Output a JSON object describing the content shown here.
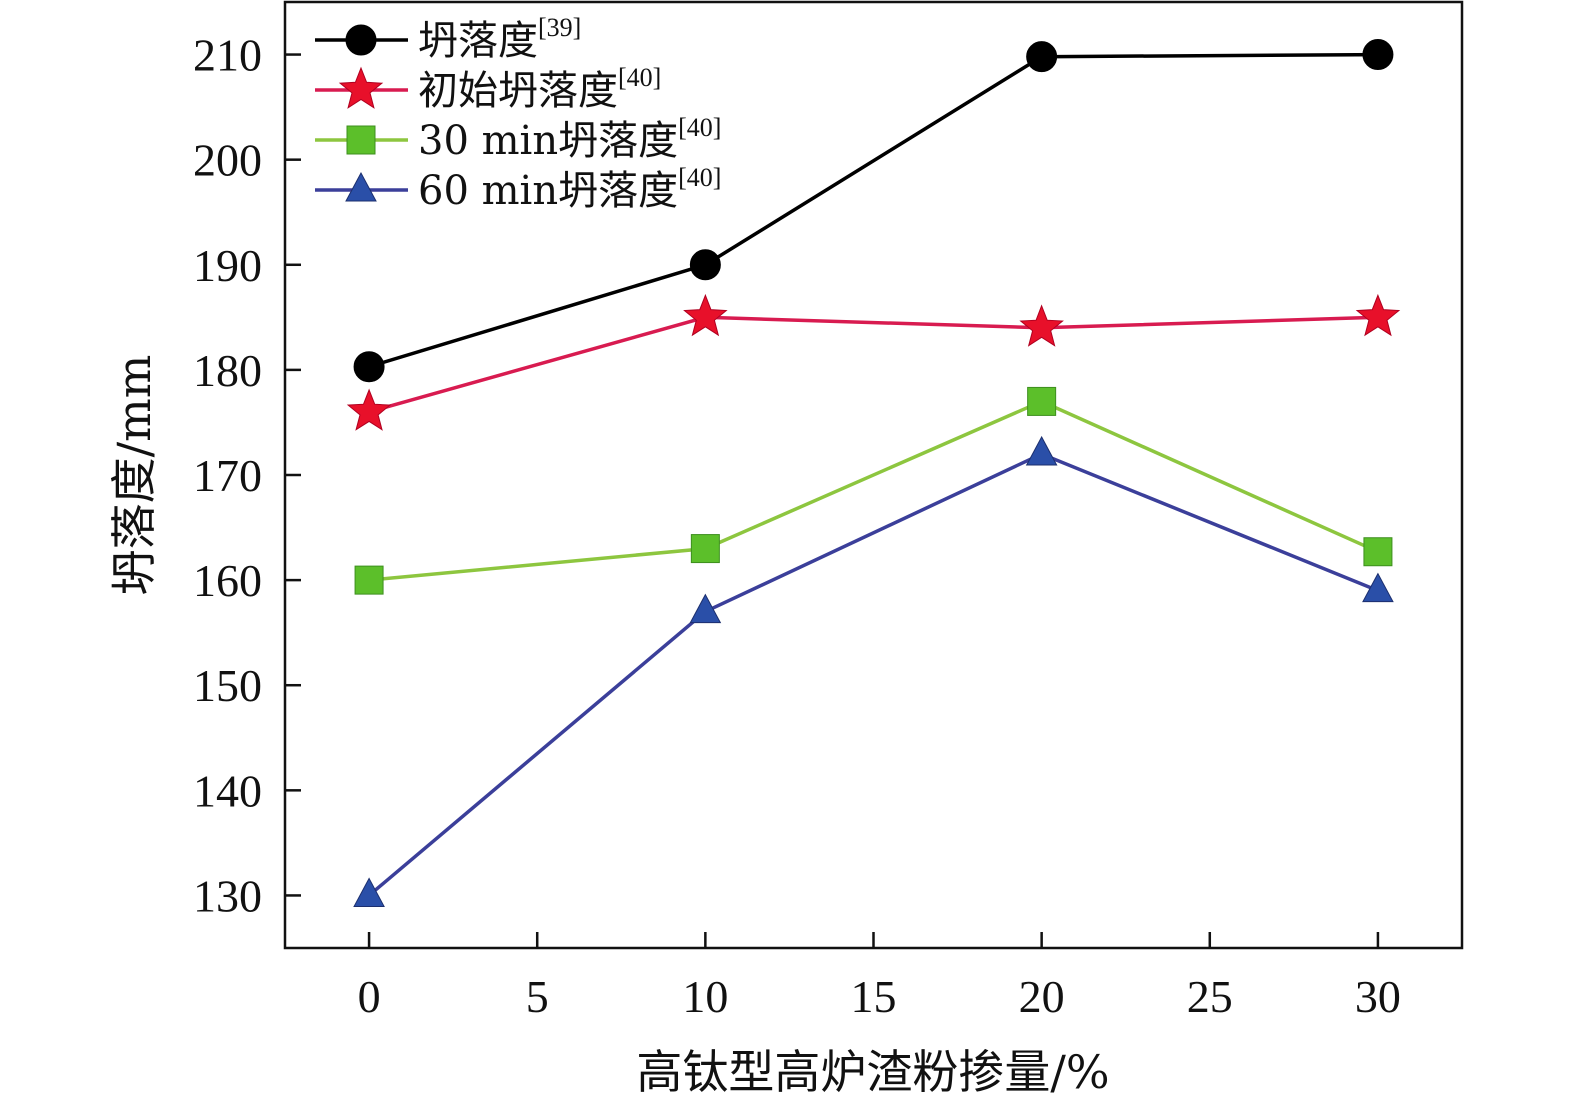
{
  "chart_data": {
    "type": "line",
    "xlabel": "高钛型高炉渣粉掺量/%",
    "ylabel": "坍落度/mm",
    "xlim": [
      -2.5,
      32.5
    ],
    "ylim": [
      125,
      215
    ],
    "xticks": [
      0,
      5,
      10,
      15,
      20,
      25,
      30
    ],
    "yticks": [
      130,
      140,
      150,
      160,
      170,
      180,
      190,
      200,
      210
    ],
    "x": [
      0,
      10,
      20,
      30
    ],
    "legend_position": "top-left",
    "grid": false,
    "series": [
      {
        "name": "坍落度",
        "ref": "[39]",
        "marker": "circle",
        "line_color": "#000000",
        "marker_color": "#000000",
        "values": [
          180.3,
          190,
          209.8,
          210
        ]
      },
      {
        "name": "初始坍落度",
        "ref": "[40]",
        "marker": "star",
        "line_color": "#d81b50",
        "marker_color": "#e8102a",
        "values": [
          176,
          185,
          184,
          185
        ]
      },
      {
        "name": "30 min坍落度",
        "ref": "[40]",
        "marker": "square",
        "line_color": "#8dc63f",
        "marker_color": "#5cbf2a",
        "values": [
          160,
          163,
          177,
          162.7
        ]
      },
      {
        "name": "60 min坍落度",
        "ref": "[40]",
        "marker": "triangle",
        "line_color": "#3b3f9a",
        "marker_color": "#2a4fa8",
        "values": [
          130,
          157,
          172,
          159
        ]
      }
    ]
  }
}
